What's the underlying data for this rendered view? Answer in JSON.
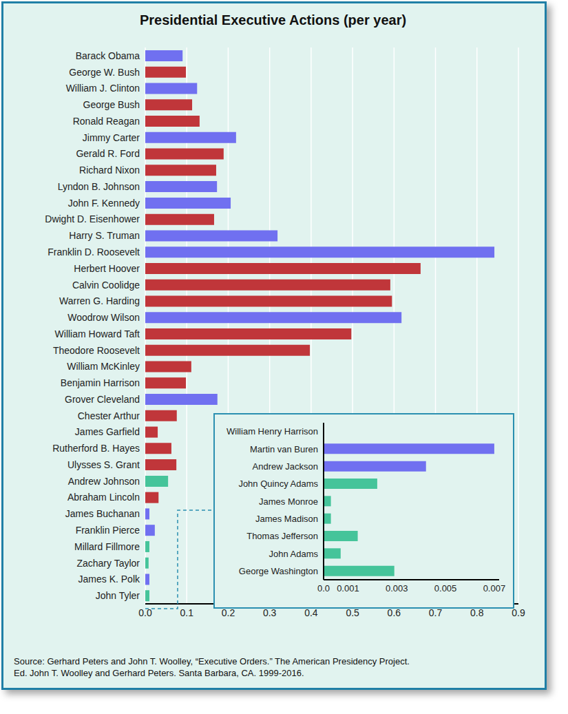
{
  "chart_data": [
    {
      "type": "bar",
      "title": "Presidential Executive Actions (per year)",
      "orientation": "horizontal",
      "grid": true,
      "categories": [
        "Barack Obama",
        "George W. Bush",
        "William J. Clinton",
        "George Bush",
        "Ronald Reagan",
        "Jimmy Carter",
        "Gerald R. Ford",
        "Richard Nixon",
        "Lyndon B. Johnson",
        "John F. Kennedy",
        "Dwight D. Eisenhower",
        "Harry S. Truman",
        "Franklin D. Roosevelt",
        "Herbert Hoover",
        "Calvin Coolidge",
        "Warren G. Harding",
        "Woodrow Wilson",
        "William Howard Taft",
        "Theodore Roosevelt",
        "William McKinley",
        "Benjamin Harrison",
        "Grover Cleveland",
        "Chester Arthur",
        "James Garfield",
        "Rutherford B. Hayes",
        "Ulysses S. Grant",
        "Andrew Johnson",
        "Abraham Lincoln",
        "James Buchanan",
        "Franklin Pierce",
        "Millard Fillmore",
        "Zachary Taylor",
        "James K. Polk",
        "John Tyler"
      ],
      "values": [
        0.09,
        0.098,
        0.125,
        0.113,
        0.131,
        0.219,
        0.189,
        0.171,
        0.173,
        0.206,
        0.166,
        0.319,
        0.842,
        0.664,
        0.591,
        0.595,
        0.618,
        0.497,
        0.397,
        0.111,
        0.098,
        0.174,
        0.076,
        0.03,
        0.063,
        0.075,
        0.055,
        0.032,
        0.01,
        0.023,
        0.01,
        0.008,
        0.01,
        0.01
      ],
      "colors": [
        "#7070f0",
        "#c0363a",
        "#7070f0",
        "#c0363a",
        "#c0363a",
        "#7070f0",
        "#c0363a",
        "#c0363a",
        "#7070f0",
        "#7070f0",
        "#c0363a",
        "#7070f0",
        "#7070f0",
        "#c0363a",
        "#c0363a",
        "#c0363a",
        "#7070f0",
        "#c0363a",
        "#c0363a",
        "#c0363a",
        "#c0363a",
        "#7070f0",
        "#c0363a",
        "#c0363a",
        "#c0363a",
        "#c0363a",
        "#45c49a",
        "#c0363a",
        "#7070f0",
        "#7070f0",
        "#45c49a",
        "#45c49a",
        "#7070f0",
        "#45c49a"
      ],
      "xlim": [
        0,
        0.9
      ],
      "xticks": [
        {
          "value": 0,
          "label": "0.0"
        },
        0.1,
        0.2,
        0.3,
        0.4,
        0.5,
        0.6,
        0.7,
        0.8,
        0.9
      ],
      "annotations": [
        "Source: Gerhard Peters and John T. Woolley, “Executive Orders.” The American Presidency Project.",
        "Ed. John T. Woolley and Gerhard Peters. Santa Barbara, CA. 1999-2016."
      ]
    },
    {
      "type": "bar",
      "orientation": "horizontal",
      "grid": false,
      "categories": [
        "William Henry Harrison",
        "Martin van Buren",
        "Andrew Jackson",
        "John Quincy Adams",
        "James Monroe",
        "James Madison",
        "Thomas Jefferson",
        "John Adams",
        "George Washington"
      ],
      "values": [
        0,
        0.007,
        0.0042,
        0.0022,
        0.0003,
        0.0003,
        0.0014,
        0.0007,
        0.0029
      ],
      "colors": [
        "#45c49a",
        "#7070f0",
        "#7070f0",
        "#45c49a",
        "#45c49a",
        "#45c49a",
        "#45c49a",
        "#45c49a",
        "#45c49a"
      ],
      "xlim": [
        0,
        0.0072
      ],
      "xticks": [
        {
          "value": 0,
          "label": "0.0"
        },
        0.001,
        0.003,
        0.005,
        0.007
      ]
    }
  ]
}
